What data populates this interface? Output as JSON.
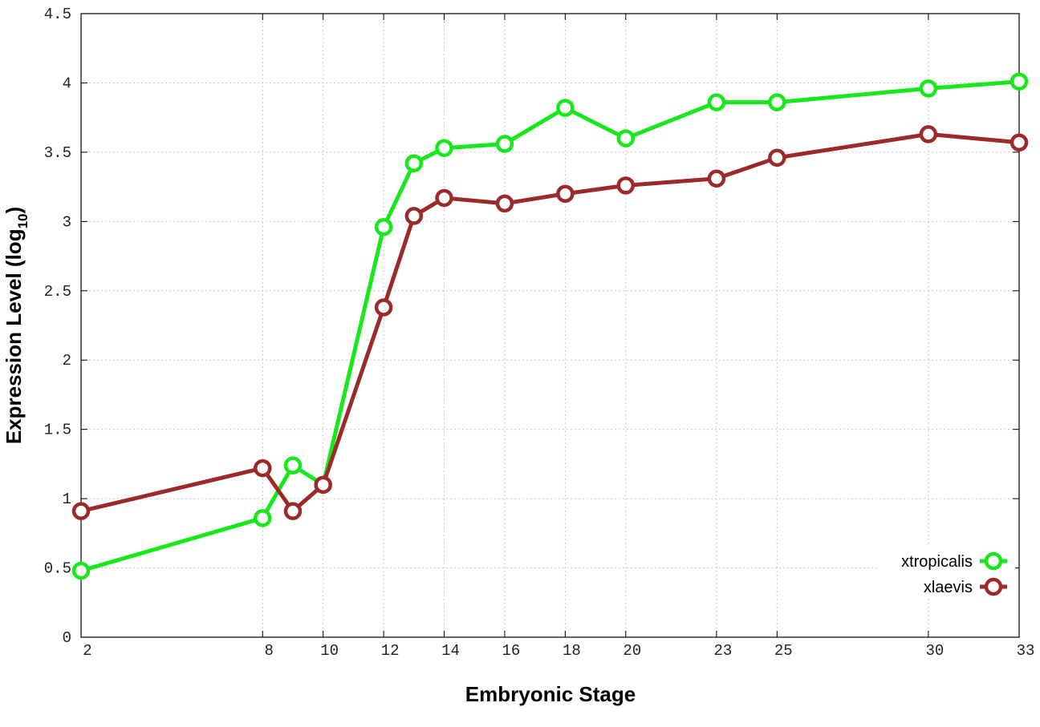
{
  "chart_data": {
    "type": "line",
    "title": "",
    "xlabel": "Embryonic Stage",
    "ylabel_main": "Expression Level (log",
    "ylabel_sub": "10",
    "ylabel_close": ")",
    "xlim": [
      2,
      33
    ],
    "ylim": [
      0,
      4.5
    ],
    "x_ticks": [
      2,
      8,
      10,
      12,
      14,
      16,
      18,
      20,
      23,
      25,
      30,
      33
    ],
    "x_tick_labels": [
      "2",
      "8",
      "10",
      "12",
      "14",
      "16",
      "18",
      "20",
      "23",
      "25",
      "30",
      "33"
    ],
    "y_ticks": [
      0,
      0.5,
      1,
      1.5,
      2,
      2.5,
      3,
      3.5,
      4,
      4.5
    ],
    "y_tick_labels": [
      "0",
      "0.5",
      "1",
      "1.5",
      "2",
      "2.5",
      "3",
      "3.5",
      "4",
      "4.5"
    ],
    "grid": true,
    "legend_position": "bottom-right",
    "x": [
      2,
      8,
      9,
      10,
      12,
      13,
      14,
      16,
      18,
      20,
      23,
      25,
      30,
      33
    ],
    "series": [
      {
        "name": "xtropicalis",
        "color": "#17e81a",
        "values": [
          0.48,
          0.86,
          1.24,
          1.1,
          2.96,
          3.42,
          3.53,
          3.56,
          3.82,
          3.6,
          3.86,
          3.86,
          3.96,
          4.01
        ]
      },
      {
        "name": "xlaevis",
        "color": "#9c2a2a",
        "values": [
          0.91,
          1.22,
          0.91,
          1.1,
          2.38,
          3.04,
          3.17,
          3.13,
          3.2,
          3.26,
          3.31,
          3.46,
          3.63,
          3.57
        ]
      }
    ]
  }
}
